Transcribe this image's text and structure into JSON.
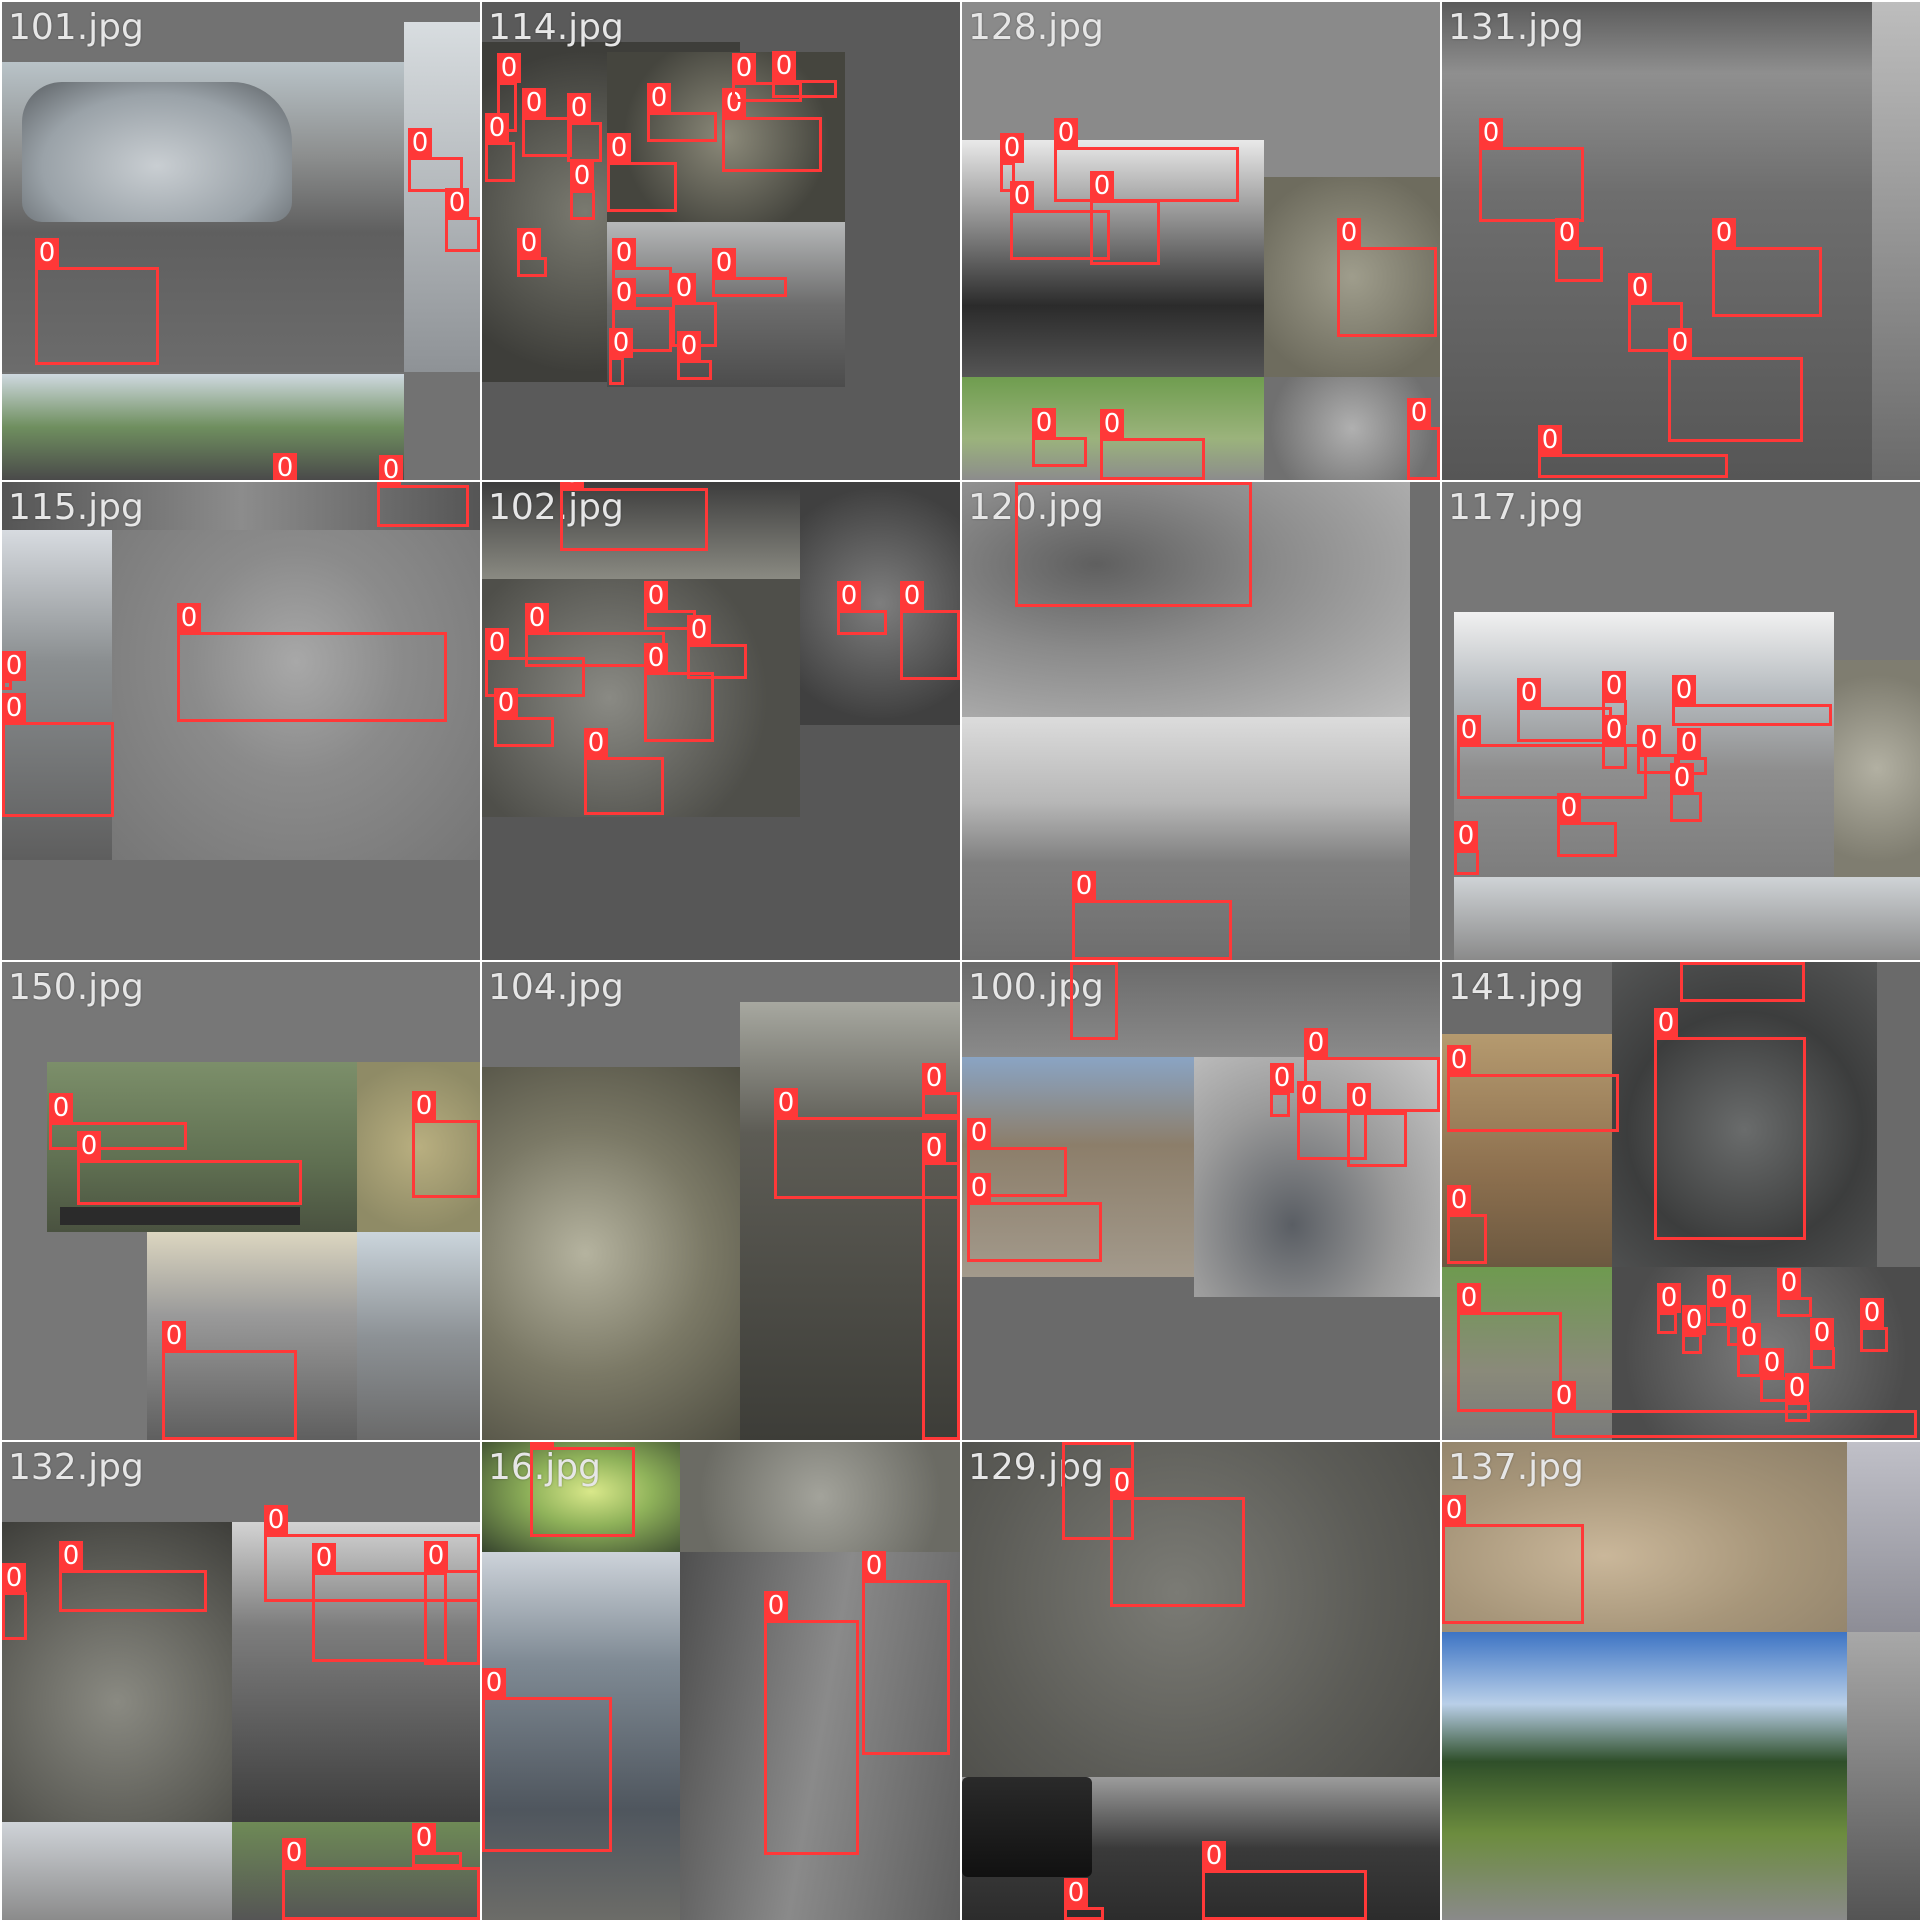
{
  "accent_color": "#ff3838",
  "mosaic": {
    "tiles": [
      {
        "title": "101.jpg",
        "bg": "#727272",
        "class_label": "0"
      },
      {
        "title": "114.jpg",
        "bg": "#5a5a5a",
        "class_label": "0"
      },
      {
        "title": "128.jpg",
        "bg": "#8a8a8a",
        "class_label": "0"
      },
      {
        "title": "131.jpg",
        "bg": "#7a7a7a",
        "class_label": "0"
      },
      {
        "title": "115.jpg",
        "bg": "#6d6d6d",
        "class_label": "0"
      },
      {
        "title": "102.jpg",
        "bg": "#575757",
        "class_label": "0"
      },
      {
        "title": "120.jpg",
        "bg": "#6e6e6e",
        "class_label": "0"
      },
      {
        "title": "117.jpg",
        "bg": "#777777",
        "class_label": "0"
      },
      {
        "title": "150.jpg",
        "bg": "#777777",
        "class_label": "0"
      },
      {
        "title": "104.jpg",
        "bg": "#707070",
        "class_label": "0"
      },
      {
        "title": "100.jpg",
        "bg": "#6a6a6a",
        "class_label": "0"
      },
      {
        "title": "141.jpg",
        "bg": "#6a6a6a",
        "class_label": "0"
      },
      {
        "title": "132.jpg",
        "bg": "#727272",
        "class_label": "0"
      },
      {
        "title": "16.jpg",
        "bg": "#5c5c5c",
        "class_label": "0"
      },
      {
        "title": "129.jpg",
        "bg": "#6b6b6b",
        "class_label": "0"
      },
      {
        "title": "137.jpg",
        "bg": "#7a7a7a",
        "class_label": "0"
      }
    ]
  }
}
